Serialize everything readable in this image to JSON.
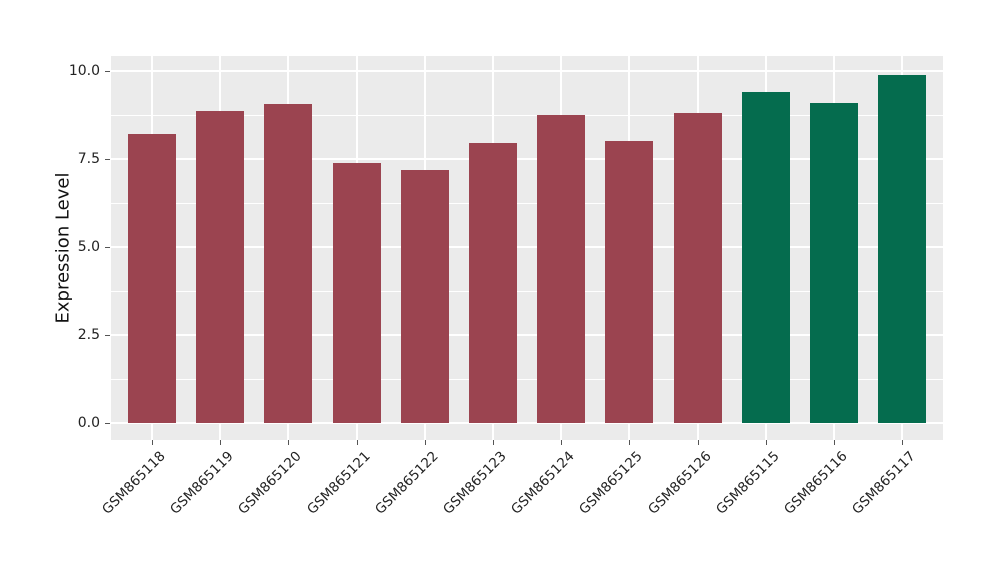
{
  "chart_data": {
    "type": "bar",
    "title": "",
    "ylabel": "Expression Level",
    "xlabel": "",
    "categories": [
      "GSM865118",
      "GSM865119",
      "GSM865120",
      "GSM865121",
      "GSM865122",
      "GSM865123",
      "GSM865124",
      "GSM865125",
      "GSM865126",
      "GSM865115",
      "GSM865116",
      "GSM865117"
    ],
    "values": [
      8.2,
      8.85,
      9.05,
      7.4,
      7.2,
      7.95,
      8.75,
      8.0,
      8.8,
      9.4,
      9.1,
      9.9
    ],
    "bar_colors": [
      "#9B4450",
      "#9B4450",
      "#9B4450",
      "#9B4450",
      "#9B4450",
      "#9B4450",
      "#9B4450",
      "#9B4450",
      "#9B4450",
      "#056C4E",
      "#056C4E",
      "#056C4E"
    ],
    "group_colors": {
      "first_nine": "#9B4450",
      "last_three": "#056C4E"
    },
    "ylim": [
      0,
      10.4
    ],
    "yticks": [
      {
        "value": 0.0,
        "label": "0.0"
      },
      {
        "value": 2.5,
        "label": "2.5"
      },
      {
        "value": 5.0,
        "label": "5.0"
      },
      {
        "value": 7.5,
        "label": "7.5"
      },
      {
        "value": 10.0,
        "label": "10.0"
      }
    ],
    "yminor": [
      1.25,
      3.75,
      6.25,
      8.75
    ],
    "panel_bg": "#EBEBEB",
    "grid_color": "#FFFFFF",
    "grid": "on",
    "legend_position": "none"
  }
}
